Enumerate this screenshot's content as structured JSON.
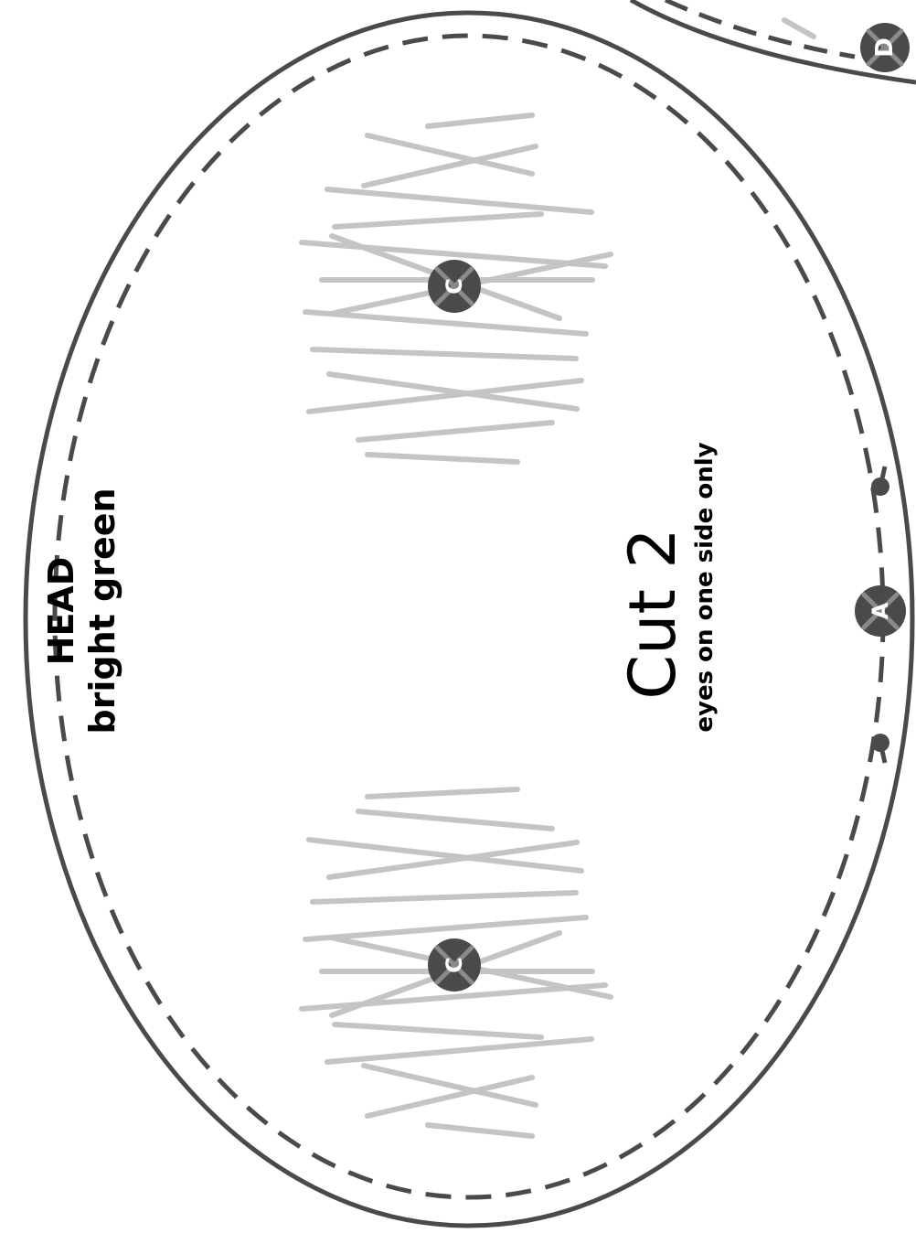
{
  "pattern": {
    "piece_name": "HEAD",
    "color_note": "bright green",
    "cut_instruction": "Cut 2",
    "cut_note": "eyes on one side only"
  },
  "markers": {
    "a": "A",
    "c": "C",
    "d": "D"
  },
  "colors": {
    "outline": "#4a4a4a",
    "stitching": "#c4c4c5",
    "marker_fill": "#4a4a4a",
    "text": "#000000"
  },
  "icons": [
    "eye-stitch-icon",
    "placement-marker-icon",
    "notch-icon"
  ]
}
